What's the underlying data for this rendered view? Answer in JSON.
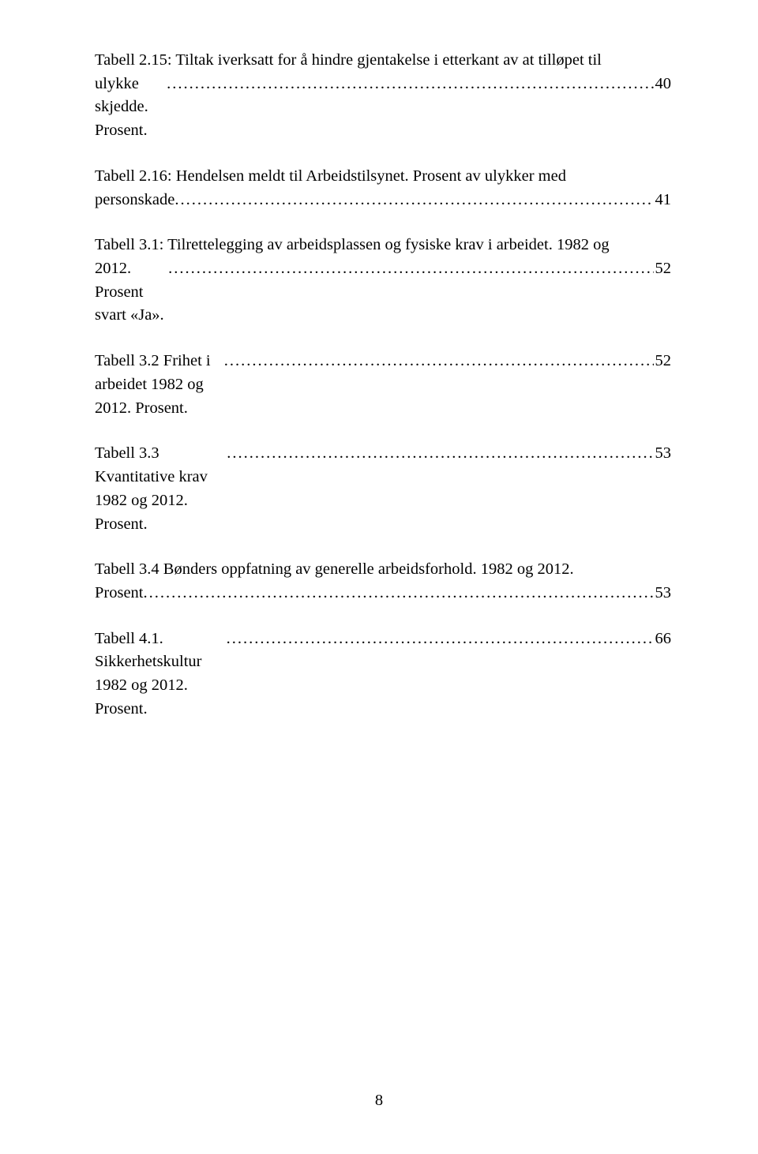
{
  "toc": [
    {
      "lines": [
        "Tabell 2.15: Tiltak iverksatt for å hindre gjentakelse i etterkant av at tilløpet til",
        "ulykke skjedde. Prosent."
      ],
      "page": "40"
    },
    {
      "lines": [
        "Tabell 2.16: Hendelsen meldt til Arbeidstilsynet. Prosent av ulykker med",
        "personskade."
      ],
      "page": "41"
    },
    {
      "lines": [
        "Tabell 3.1: Tilrettelegging av arbeidsplassen og fysiske krav i arbeidet. 1982 og",
        "2012. Prosent svart «Ja»."
      ],
      "page": "52"
    },
    {
      "lines": [
        "Tabell 3.2 Frihet i arbeidet 1982 og 2012. Prosent."
      ],
      "page": "52"
    },
    {
      "lines": [
        "Tabell 3.3 Kvantitative krav 1982 og 2012. Prosent."
      ],
      "page": "53"
    },
    {
      "lines": [
        "Tabell 3.4 Bønders oppfatning av generelle arbeidsforhold. 1982 og 2012.",
        "Prosent."
      ],
      "page": "53"
    },
    {
      "lines": [
        "Tabell 4.1. Sikkerhetskultur 1982 og 2012. Prosent."
      ],
      "page": "66"
    }
  ],
  "page_number": "8"
}
